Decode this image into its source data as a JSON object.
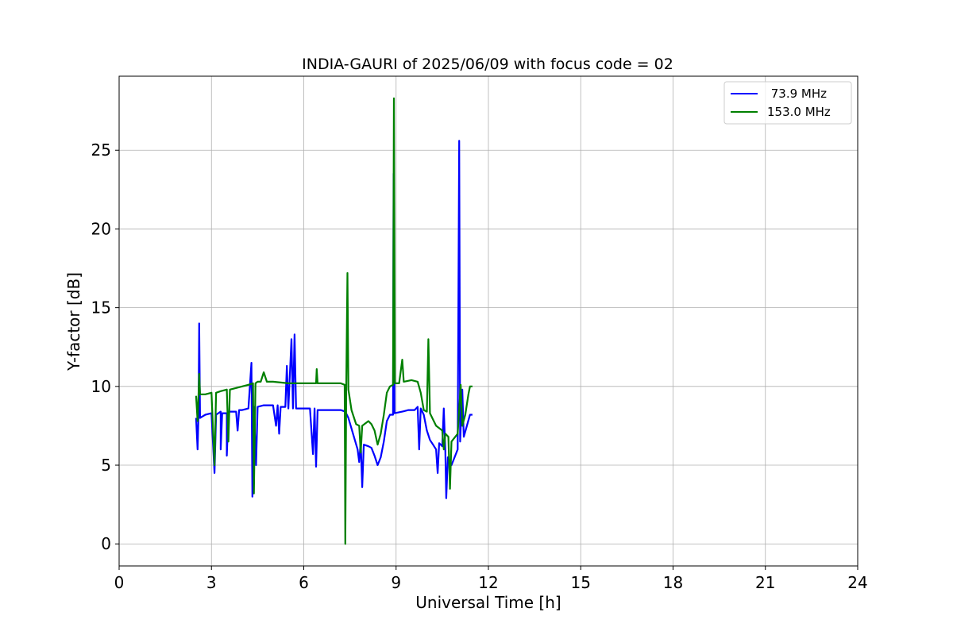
{
  "chart_data": {
    "type": "line",
    "title": "INDIA-GAURI of 2025/06/09 with focus code = 02",
    "xlabel": "Universal Time [h]",
    "ylabel": "Y-factor [dB]",
    "xlim": [
      0,
      24
    ],
    "ylim": [
      -1.4,
      29.7
    ],
    "xticks": [
      0,
      3,
      6,
      9,
      12,
      15,
      18,
      21,
      24
    ],
    "yticks": [
      0,
      5,
      10,
      15,
      20,
      25
    ],
    "grid": true,
    "legend_position": "top-right",
    "series": [
      {
        "name": " 73.9 MHz",
        "color": "#0000ff",
        "points": [
          [
            2.5,
            8.0
          ],
          [
            2.55,
            6.0
          ],
          [
            2.58,
            8.3
          ],
          [
            2.6,
            14.0
          ],
          [
            2.63,
            8.0
          ],
          [
            2.8,
            8.2
          ],
          [
            3.0,
            8.3
          ],
          [
            3.1,
            4.5
          ],
          [
            3.15,
            8.2
          ],
          [
            3.3,
            8.4
          ],
          [
            3.3,
            6.0
          ],
          [
            3.35,
            8.3
          ],
          [
            3.5,
            8.3
          ],
          [
            3.5,
            5.6
          ],
          [
            3.55,
            8.4
          ],
          [
            3.8,
            8.4
          ],
          [
            3.85,
            7.2
          ],
          [
            3.9,
            8.5
          ],
          [
            4.0,
            8.5
          ],
          [
            4.2,
            8.6
          ],
          [
            4.3,
            11.5
          ],
          [
            4.33,
            3.0
          ],
          [
            4.38,
            8.7
          ],
          [
            4.45,
            5.0
          ],
          [
            4.5,
            8.7
          ],
          [
            4.7,
            8.8
          ],
          [
            5.0,
            8.8
          ],
          [
            5.1,
            7.5
          ],
          [
            5.15,
            8.8
          ],
          [
            5.2,
            7.0
          ],
          [
            5.25,
            8.7
          ],
          [
            5.4,
            8.7
          ],
          [
            5.45,
            11.3
          ],
          [
            5.5,
            8.6
          ],
          [
            5.6,
            13.0
          ],
          [
            5.65,
            8.6
          ],
          [
            5.7,
            13.3
          ],
          [
            5.75,
            8.6
          ],
          [
            5.9,
            8.6
          ],
          [
            6.0,
            8.6
          ],
          [
            6.2,
            8.6
          ],
          [
            6.3,
            5.7
          ],
          [
            6.35,
            8.6
          ],
          [
            6.4,
            4.9
          ],
          [
            6.45,
            8.5
          ],
          [
            6.7,
            8.5
          ],
          [
            7.0,
            8.5
          ],
          [
            7.2,
            8.5
          ],
          [
            7.35,
            8.4
          ],
          [
            7.45,
            8.0
          ],
          [
            7.6,
            7.0
          ],
          [
            7.75,
            6.0
          ],
          [
            7.8,
            5.2
          ],
          [
            7.85,
            6.5
          ],
          [
            7.9,
            3.6
          ],
          [
            7.95,
            6.3
          ],
          [
            8.1,
            6.2
          ],
          [
            8.2,
            6.1
          ],
          [
            8.3,
            5.6
          ],
          [
            8.4,
            5.0
          ],
          [
            8.5,
            5.5
          ],
          [
            8.6,
            6.5
          ],
          [
            8.7,
            7.8
          ],
          [
            8.8,
            8.2
          ],
          [
            8.9,
            8.2
          ],
          [
            8.92,
            23.5
          ],
          [
            8.95,
            8.3
          ],
          [
            9.2,
            8.4
          ],
          [
            9.4,
            8.5
          ],
          [
            9.6,
            8.5
          ],
          [
            9.7,
            8.7
          ],
          [
            9.75,
            6.0
          ],
          [
            9.8,
            8.6
          ],
          [
            9.9,
            8.2
          ],
          [
            10.0,
            7.2
          ],
          [
            10.1,
            6.6
          ],
          [
            10.2,
            6.3
          ],
          [
            10.3,
            6.0
          ],
          [
            10.35,
            4.5
          ],
          [
            10.4,
            6.4
          ],
          [
            10.5,
            6.2
          ],
          [
            10.55,
            8.6
          ],
          [
            10.6,
            5.8
          ],
          [
            10.63,
            2.9
          ],
          [
            10.68,
            5.5
          ],
          [
            10.8,
            5.0
          ],
          [
            10.9,
            5.5
          ],
          [
            11.0,
            6.0
          ],
          [
            11.05,
            25.6
          ],
          [
            11.08,
            6.5
          ],
          [
            11.15,
            9.8
          ],
          [
            11.2,
            6.8
          ],
          [
            11.3,
            7.5
          ],
          [
            11.4,
            8.2
          ],
          [
            11.48,
            8.2
          ]
        ]
      },
      {
        "name": "153.0 MHz",
        "color": "#008000",
        "points": [
          [
            2.5,
            9.4
          ],
          [
            2.55,
            7.8
          ],
          [
            2.58,
            9.5
          ],
          [
            2.6,
            10.8
          ],
          [
            2.63,
            9.5
          ],
          [
            2.8,
            9.5
          ],
          [
            3.0,
            9.6
          ],
          [
            3.1,
            5.0
          ],
          [
            3.15,
            9.6
          ],
          [
            3.3,
            9.7
          ],
          [
            3.5,
            9.8
          ],
          [
            3.55,
            6.5
          ],
          [
            3.6,
            9.8
          ],
          [
            3.8,
            9.9
          ],
          [
            4.0,
            10.0
          ],
          [
            4.2,
            10.1
          ],
          [
            4.35,
            10.2
          ],
          [
            4.38,
            3.2
          ],
          [
            4.43,
            10.2
          ],
          [
            4.5,
            10.3
          ],
          [
            4.6,
            10.3
          ],
          [
            4.7,
            10.9
          ],
          [
            4.8,
            10.3
          ],
          [
            5.0,
            10.3
          ],
          [
            5.5,
            10.2
          ],
          [
            5.9,
            10.2
          ],
          [
            6.0,
            10.2
          ],
          [
            6.4,
            10.2
          ],
          [
            6.42,
            11.1
          ],
          [
            6.45,
            10.2
          ],
          [
            6.8,
            10.2
          ],
          [
            7.0,
            10.2
          ],
          [
            7.2,
            10.2
          ],
          [
            7.33,
            10.1
          ],
          [
            7.35,
            0.0
          ],
          [
            7.38,
            10.0
          ],
          [
            7.42,
            17.2
          ],
          [
            7.45,
            9.8
          ],
          [
            7.55,
            8.5
          ],
          [
            7.7,
            7.6
          ],
          [
            7.8,
            7.5
          ],
          [
            7.85,
            5.8
          ],
          [
            7.9,
            7.5
          ],
          [
            8.1,
            7.8
          ],
          [
            8.2,
            7.6
          ],
          [
            8.3,
            7.2
          ],
          [
            8.4,
            6.3
          ],
          [
            8.5,
            7.0
          ],
          [
            8.6,
            8.2
          ],
          [
            8.7,
            9.6
          ],
          [
            8.8,
            10.0
          ],
          [
            8.9,
            10.1
          ],
          [
            8.93,
            28.3
          ],
          [
            8.96,
            10.2
          ],
          [
            9.1,
            10.2
          ],
          [
            9.2,
            11.7
          ],
          [
            9.25,
            10.3
          ],
          [
            9.5,
            10.4
          ],
          [
            9.7,
            10.3
          ],
          [
            9.8,
            9.6
          ],
          [
            9.9,
            8.5
          ],
          [
            10.0,
            8.4
          ],
          [
            10.05,
            13.0
          ],
          [
            10.1,
            8.3
          ],
          [
            10.3,
            7.5
          ],
          [
            10.5,
            7.2
          ],
          [
            10.55,
            6.0
          ],
          [
            10.6,
            7.0
          ],
          [
            10.7,
            6.8
          ],
          [
            10.75,
            3.5
          ],
          [
            10.8,
            6.5
          ],
          [
            11.0,
            7.0
          ],
          [
            11.1,
            10.1
          ],
          [
            11.15,
            7.5
          ],
          [
            11.25,
            8.2
          ],
          [
            11.35,
            9.5
          ],
          [
            11.4,
            10.0
          ],
          [
            11.48,
            10.0
          ]
        ]
      }
    ]
  }
}
